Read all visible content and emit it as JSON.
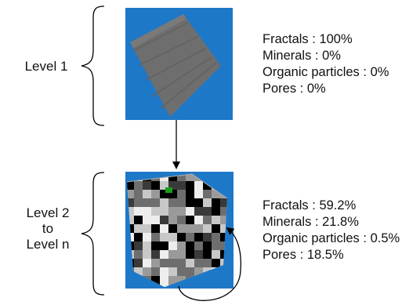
{
  "level_1": {
    "label": "Level 1",
    "stats": [
      {
        "name": "Fractals",
        "value": "100%"
      },
      {
        "name": "Minerals",
        "value": "0%"
      },
      {
        "name": "Organic particles",
        "value": "0%"
      },
      {
        "name": "Pores",
        "value": "0%"
      }
    ],
    "panel_color": "#1e78c8",
    "cube_color": "#6e6e6e"
  },
  "level_2_to_n": {
    "label_line1": "Level 2",
    "label_line2": "to",
    "label_line3": "Level n",
    "stats": [
      {
        "name": "Fractals",
        "value": "59.2%"
      },
      {
        "name": "Minerals",
        "value": "21.8%"
      },
      {
        "name": "Organic particles",
        "value": "0.5%"
      },
      {
        "name": "Pores",
        "value": "18.5%"
      }
    ],
    "panel_color": "#1e78c8",
    "voxel_palette": [
      "#000000",
      "#3a3a3a",
      "#6e6e6e",
      "#9a9a9a",
      "#c8c8c8",
      "#eeeeee",
      "#18a018"
    ]
  }
}
